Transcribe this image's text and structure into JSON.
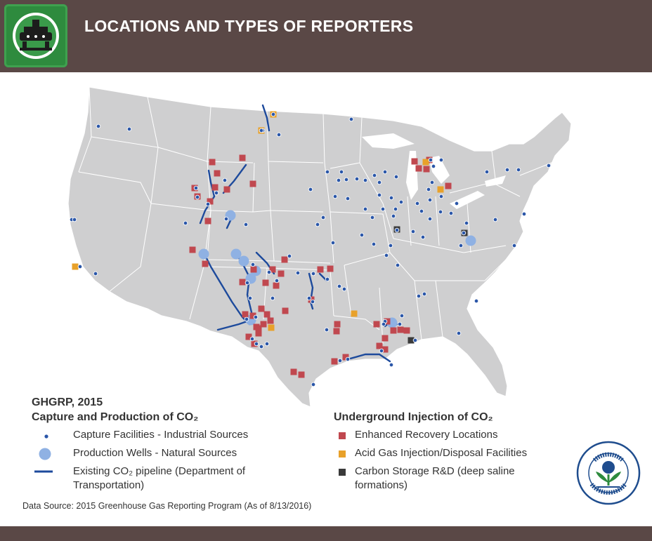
{
  "header": {
    "title": "LOCATIONS AND TYPES OF REPORTERS"
  },
  "legend": {
    "year_label": "GHGRP, 2015",
    "capture_heading": "Capture and Production of CO₂",
    "capture_items": [
      {
        "label": "Capture Facilities - Industrial Sources",
        "symbol": "small-blue-dot",
        "color": "#2a56a8"
      },
      {
        "label": "Production Wells - Natural Sources",
        "symbol": "large-light-blue-circle",
        "color": "#8fb1e3"
      },
      {
        "label": "Existing CO₂ pipeline (Department of Transportation)",
        "symbol": "blue-line",
        "color": "#1d4a9c"
      }
    ],
    "injection_heading": "Underground Injection of CO₂",
    "injection_items": [
      {
        "label": "Enhanced Recovery Locations",
        "symbol": "red-square",
        "color": "#c0484f"
      },
      {
        "label": "Acid Gas Injection/Disposal Facilities",
        "symbol": "orange-square",
        "color": "#e8a12a"
      },
      {
        "label": "Carbon Storage R&D (deep saline formations)",
        "symbol": "dark-square",
        "color": "#3a3a3a"
      }
    ],
    "source": "Data Source: 2015 Greenhouse Gas Reporting Program (As of 8/13/2016)"
  },
  "seal": {
    "text_top": "UNITED STATES",
    "text_bottom": "ENVIRONMENTAL PROTECTION AGENCY"
  },
  "colors": {
    "header_bg": "#5a4846",
    "land": "#cfcfd0",
    "state_border": "#ffffff",
    "capture": "#2a56a8",
    "production": "#8fb1e3",
    "pipeline": "#1d4a9c",
    "enhanced": "#c0484f",
    "acid_gas": "#e8a12a",
    "storage": "#3a3a3a"
  }
}
